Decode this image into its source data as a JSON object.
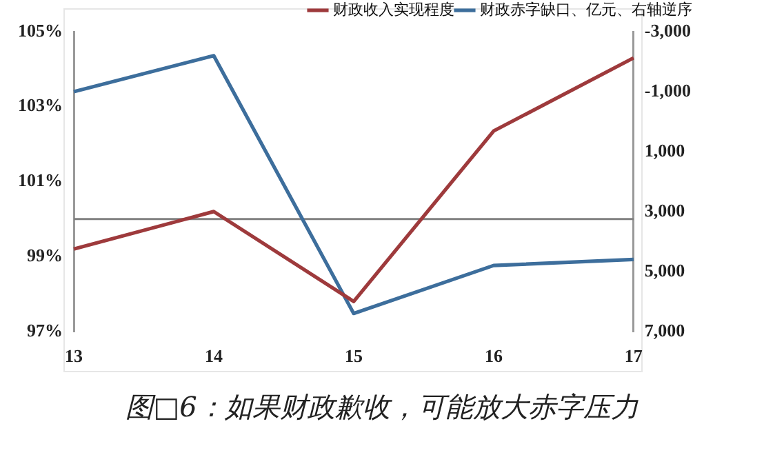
{
  "chart_data": {
    "type": "line",
    "title": "图□6：如果财政歉收，可能放大赤字压力",
    "categories": [
      "13",
      "14",
      "15",
      "16",
      "17"
    ],
    "series": [
      {
        "name": "财政收入实现程度",
        "color": "#9e3a3c",
        "values": [
          99.2,
          100.2,
          97.8,
          102.35,
          104.3
        ]
      },
      {
        "name": "财政赤字缺口、亿元、右轴逆序",
        "color": "#3d6e9c",
        "values": [
          -1000,
          -2200,
          6400,
          4800,
          4600
        ],
        "axis": "y2"
      }
    ],
    "ylim": [
      97,
      105
    ],
    "yticks": [
      {
        "value": 97,
        "label": "97%"
      },
      {
        "value": 99,
        "label": "99%"
      },
      {
        "value": 101,
        "label": "101%"
      },
      {
        "value": 103,
        "label": "103%"
      },
      {
        "value": 105,
        "label": "105%"
      }
    ],
    "y2lim": [
      7000,
      -3000
    ],
    "y2ticks": [
      {
        "value": 7000,
        "label": "7,000"
      },
      {
        "value": 5000,
        "label": "5,000"
      },
      {
        "value": 3000,
        "label": "3,000"
      },
      {
        "value": 1000,
        "label": "1,000"
      },
      {
        "value": -1000,
        "label": "-1,000"
      },
      {
        "value": -3000,
        "label": "-3,000"
      }
    ],
    "ref_lines": [
      {
        "axis": "y",
        "value": 100,
        "color": "#808080"
      }
    ],
    "grid": false,
    "legend": "top",
    "marker": "none",
    "line_style": "solid"
  }
}
